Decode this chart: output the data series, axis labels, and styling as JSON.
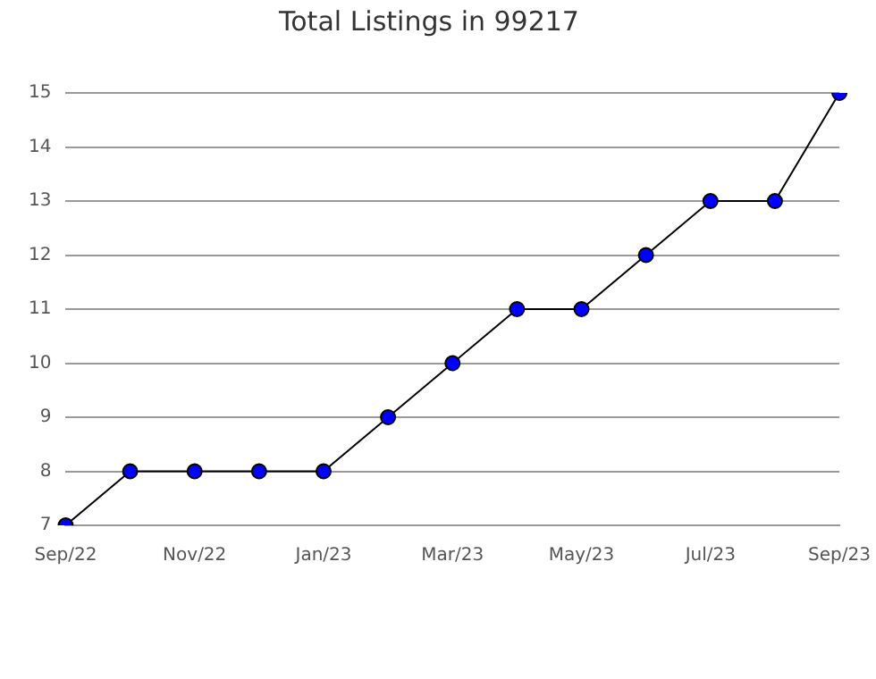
{
  "chart_data": {
    "type": "line",
    "title": "Total Listings in 99217",
    "categories": [
      "Sep/22",
      null,
      "Nov/22",
      null,
      "Jan/23",
      null,
      "Mar/23",
      null,
      "May/23",
      null,
      "Jul/23",
      null,
      "Sep/23"
    ],
    "series": [
      {
        "color": "#0000ff",
        "values": [
          7,
          8,
          8,
          8,
          8,
          9,
          10,
          11,
          11,
          12,
          13,
          13,
          15
        ]
      }
    ],
    "ylim": [
      7,
      15
    ],
    "yticks": [
      7,
      8,
      9,
      10,
      11,
      12,
      13,
      14,
      15
    ],
    "grid": "y",
    "legend": false,
    "marker": "circle",
    "line_style": "solid"
  }
}
